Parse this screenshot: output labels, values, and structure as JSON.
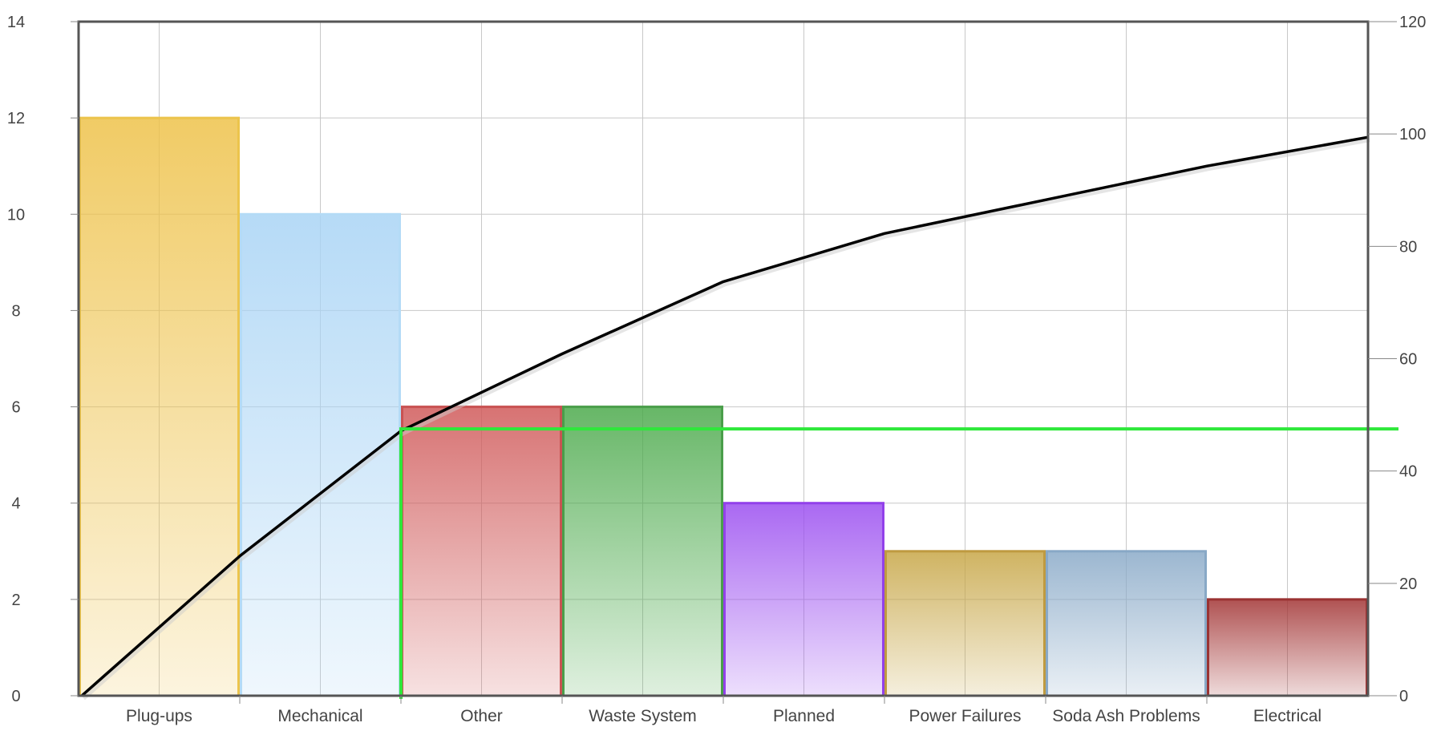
{
  "chart_data": {
    "type": "bar",
    "categories": [
      "Plug-ups",
      "Mechanical",
      "Other",
      "Waste System",
      "Planned",
      "Power Failures",
      "Soda Ash Problems",
      "Electrical"
    ],
    "series": [
      {
        "values": [
          12,
          10,
          6,
          6,
          4,
          3,
          3,
          2
        ]
      }
    ],
    "cumulative_line": [
      0,
      2.9,
      5.5,
      7.1,
      8.6,
      9.6,
      10.3,
      11.0,
      11.6
    ],
    "threshold_line_right_axis": 47.5,
    "y_left": {
      "lim": [
        0,
        14
      ],
      "ticks": [
        "0",
        "2",
        "4",
        "6",
        "8",
        "10",
        "12",
        "14"
      ]
    },
    "y_right": {
      "lim": [
        0,
        120
      ],
      "ticks": [
        "0",
        "20",
        "40",
        "60",
        "80",
        "100",
        "120"
      ]
    },
    "grid": true,
    "title": "",
    "xlabel": "",
    "ylabel": "",
    "colors": {
      "bars": [
        "#eec24a",
        "#a9d4f5",
        "#d05a5a",
        "#4caa4c",
        "#9b4ef0",
        "#c7a646",
        "#8aaac8",
        "#a23434"
      ],
      "bar_borders": [
        "#ecc44c",
        "#b4dbf6",
        "#c95252",
        "#4a9e4a",
        "#9240ea",
        "#bf9a40",
        "#88a8c6",
        "#9a3232"
      ],
      "cumulative_line": "#000000",
      "threshold_line": "#2ee83a",
      "grid": "#c8c8c8",
      "frame": "#555555"
    }
  }
}
